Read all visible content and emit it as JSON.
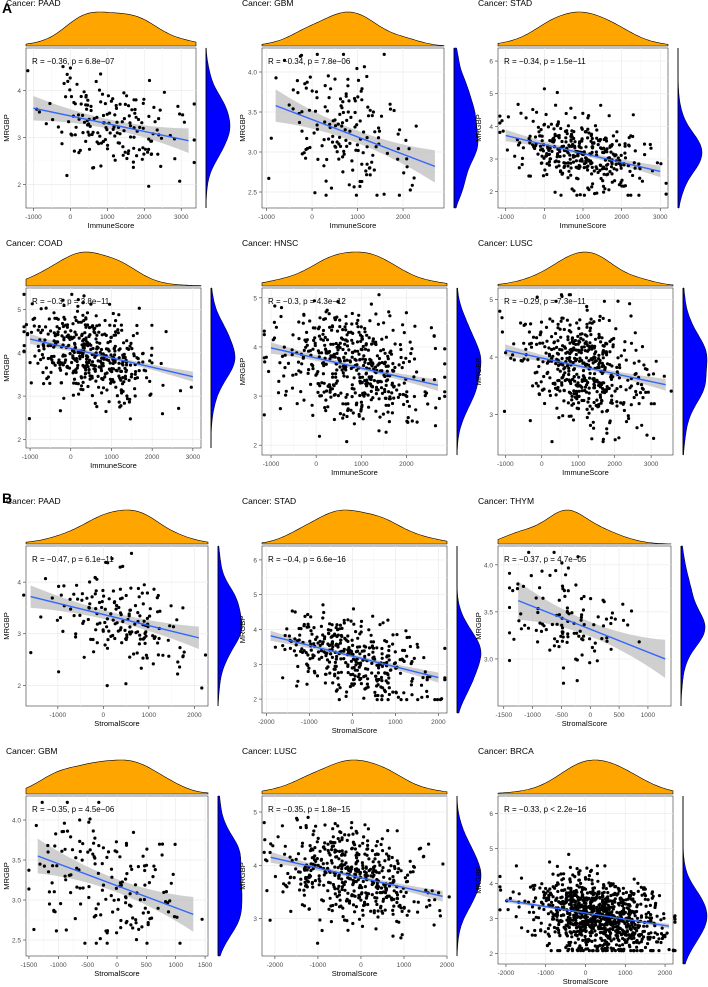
{
  "figure": {
    "panel_labels": [
      "A",
      "B"
    ],
    "colors": {
      "top_density": "#FFA500",
      "side_density": "#0000FF",
      "fit_line": "#3366FF",
      "confidence_band": "#BFBFBF",
      "points": "#000000",
      "grid": "#EBEBEB",
      "axis_border": "#333333"
    }
  },
  "chart_data": [
    {
      "panel": "A",
      "type": "scatter",
      "title": "Cancer: PAAD",
      "annotation": "R = −0.36, p = 6.8e−07",
      "xlabel": "ImmuneScore",
      "ylabel": "MRGBP",
      "xlim": [
        -1200,
        3400
      ],
      "ylim": [
        1.5,
        4.9
      ],
      "xticks": [
        -1000,
        0,
        1000,
        2000,
        3000
      ],
      "yticks": [
        2,
        3,
        4
      ],
      "n_points": 179,
      "x_center": 1100,
      "x_sd": 850,
      "y_center": 3.25,
      "y_sd": 0.45,
      "fit": {
        "x": [
          -1000,
          3200
        ],
        "y": [
          3.62,
          2.93
        ]
      },
      "band_halfwidth": 0.18,
      "seed": 11
    },
    {
      "panel": "A",
      "type": "scatter",
      "title": "Cancer: GBM",
      "annotation": "R = −0.34, p = 7.8e−06",
      "xlabel": "ImmuneScore",
      "ylabel": "MRGBP",
      "xlim": [
        -1100,
        2900
      ],
      "ylim": [
        2.3,
        4.3
      ],
      "xticks": [
        -1000,
        0,
        1000,
        2000
      ],
      "yticks": [
        2.5,
        3.0,
        3.5,
        4.0
      ],
      "n_points": 168,
      "x_center": 700,
      "x_sd": 700,
      "y_center": 3.2,
      "y_sd": 0.42,
      "fit": {
        "x": [
          -800,
          2700
        ],
        "y": [
          3.58,
          2.82
        ]
      },
      "band_halfwidth": 0.14,
      "seed": 23
    },
    {
      "panel": "A",
      "type": "scatter",
      "title": "Cancer: STAD",
      "annotation": "R = −0.34, p = 1.5e−11",
      "xlabel": "ImmuneScore",
      "ylabel": "MRGBP",
      "xlim": [
        -1200,
        3200
      ],
      "ylim": [
        1.5,
        6.4
      ],
      "xticks": [
        -1000,
        0,
        1000,
        2000,
        3000
      ],
      "yticks": [
        2,
        3,
        4,
        5,
        6
      ],
      "n_points": 375,
      "x_center": 1000,
      "x_sd": 850,
      "y_center": 3.3,
      "y_sd": 0.55,
      "fit": {
        "x": [
          -1000,
          3000
        ],
        "y": [
          3.72,
          2.62
        ]
      },
      "band_halfwidth": 0.12,
      "seed": 37
    },
    {
      "panel": "A",
      "type": "scatter",
      "title": "Cancer: COAD",
      "annotation": "R = −0.3, p = 3.8e−11",
      "xlabel": "ImmuneScore",
      "ylabel": "MRGBP",
      "xlim": [
        -1100,
        3200
      ],
      "ylim": [
        1.8,
        5.5
      ],
      "xticks": [
        -1000,
        0,
        1000,
        2000,
        3000
      ],
      "yticks": [
        2,
        3,
        4,
        5
      ],
      "n_points": 450,
      "x_center": 500,
      "x_sd": 750,
      "y_center": 4.0,
      "y_sd": 0.55,
      "fit": {
        "x": [
          -1000,
          3000
        ],
        "y": [
          4.32,
          3.45
        ]
      },
      "band_halfwidth": 0.08,
      "seed": 41
    },
    {
      "panel": "A",
      "type": "scatter",
      "title": "Cancer: HNSC",
      "annotation": "R = −0.3, p = 4.3e−12",
      "xlabel": "ImmuneScore",
      "ylabel": "MRGBP",
      "xlim": [
        -1200,
        2900
      ],
      "ylim": [
        1.8,
        5.2
      ],
      "xticks": [
        -1000,
        0,
        1000,
        2000
      ],
      "yticks": [
        2,
        3,
        4,
        5
      ],
      "n_points": 500,
      "x_center": 800,
      "x_sd": 800,
      "y_center": 3.6,
      "y_sd": 0.55,
      "fit": {
        "x": [
          -1000,
          2700
        ],
        "y": [
          3.98,
          3.22
        ]
      },
      "band_halfwidth": 0.08,
      "seed": 53
    },
    {
      "panel": "A",
      "type": "scatter",
      "title": "Cancer: LUSC",
      "annotation": "R = −0.29, p = 7.3e−11",
      "xlabel": "ImmuneScore",
      "ylabel": "MRGBP",
      "xlim": [
        -1200,
        3600
      ],
      "ylim": [
        2.3,
        5.2
      ],
      "xticks": [
        -1000,
        0,
        1000,
        2000,
        3000
      ],
      "yticks": [
        3,
        4,
        5
      ],
      "n_points": 500,
      "x_center": 1100,
      "x_sd": 850,
      "y_center": 3.8,
      "y_sd": 0.45,
      "fit": {
        "x": [
          -1000,
          3400
        ],
        "y": [
          4.12,
          3.52
        ]
      },
      "band_halfwidth": 0.07,
      "seed": 67
    },
    {
      "panel": "B",
      "type": "scatter",
      "title": "Cancer: PAAD",
      "annotation": "R = −0.47, p = 6.1e−11",
      "xlabel": "StromalScore",
      "ylabel": "MRGBP",
      "xlim": [
        -1700,
        2300
      ],
      "ylim": [
        1.6,
        4.7
      ],
      "xticks": [
        -1000,
        0,
        1000,
        2000
      ],
      "yticks": [
        2,
        3,
        4
      ],
      "n_points": 179,
      "x_center": 400,
      "x_sd": 800,
      "y_center": 3.3,
      "y_sd": 0.45,
      "fit": {
        "x": [
          -1600,
          2100
        ],
        "y": [
          3.72,
          2.92
        ]
      },
      "band_halfwidth": 0.15,
      "seed": 71
    },
    {
      "panel": "B",
      "type": "scatter",
      "title": "Cancer: STAD",
      "annotation": "R = −0.4, p = 6.6e−16",
      "xlabel": "StromalScore",
      "ylabel": "MRGBP",
      "xlim": [
        -2100,
        2200
      ],
      "ylim": [
        1.6,
        6.4
      ],
      "xticks": [
        -2000,
        -1000,
        0,
        1000,
        2000
      ],
      "yticks": [
        2,
        3,
        4,
        5,
        6
      ],
      "n_points": 375,
      "x_center": 0,
      "x_sd": 850,
      "y_center": 3.2,
      "y_sd": 0.6,
      "fit": {
        "x": [
          -1900,
          2000
        ],
        "y": [
          3.82,
          2.62
        ]
      },
      "band_halfwidth": 0.1,
      "seed": 83
    },
    {
      "panel": "B",
      "type": "scatter",
      "title": "Cancer: THYM",
      "annotation": "R = −0.37, p = 4.7e−05",
      "xlabel": "StromalScore",
      "ylabel": "MRGBP",
      "xlim": [
        -1600,
        1400
      ],
      "ylim": [
        2.5,
        4.2
      ],
      "xticks": [
        -1500,
        -1000,
        -500,
        0,
        500,
        1000
      ],
      "yticks": [
        3.0,
        3.5,
        4.0
      ],
      "n_points": 118,
      "x_center": -500,
      "x_sd": 550,
      "y_center": 3.35,
      "y_sd": 0.3,
      "fit": {
        "x": [
          -1250,
          1300
        ],
        "y": [
          3.62,
          3.0
        ]
      },
      "band_halfwidth": 0.14,
      "seed": 97
    },
    {
      "panel": "B",
      "type": "scatter",
      "title": "Cancer: GBM",
      "annotation": "R = −0.35, p = 4.5e−06",
      "xlabel": "StromalScore",
      "ylabel": "MRGBP",
      "xlim": [
        -1550,
        1550
      ],
      "ylim": [
        2.3,
        4.3
      ],
      "xticks": [
        -1500,
        -1000,
        -500,
        0,
        500,
        1000,
        1500
      ],
      "yticks": [
        2.5,
        3.0,
        3.5,
        4.0
      ],
      "n_points": 168,
      "x_center": -100,
      "x_sd": 620,
      "y_center": 3.2,
      "y_sd": 0.42,
      "fit": {
        "x": [
          -1350,
          1300
        ],
        "y": [
          3.55,
          2.82
        ]
      },
      "band_halfwidth": 0.15,
      "seed": 101
    },
    {
      "panel": "B",
      "type": "scatter",
      "title": "Cancer: LUSC",
      "annotation": "R = −0.35, p = 1.8e−15",
      "xlabel": "StromalScore",
      "ylabel": "MRGBP",
      "xlim": [
        -2300,
        2000
      ],
      "ylim": [
        2.3,
        5.3
      ],
      "xticks": [
        -2000,
        -1000,
        0,
        1000,
        2000
      ],
      "yticks": [
        3,
        4,
        5
      ],
      "n_points": 500,
      "x_center": -200,
      "x_sd": 850,
      "y_center": 3.8,
      "y_sd": 0.45,
      "fit": {
        "x": [
          -2100,
          1900
        ],
        "y": [
          4.15,
          3.42
        ]
      },
      "band_halfwidth": 0.07,
      "seed": 113
    },
    {
      "panel": "B",
      "type": "scatter",
      "title": "Cancer: BRCA",
      "annotation": "R = −0.33, p < 2.2e−16",
      "xlabel": "StromalScore",
      "ylabel": "MRGBP",
      "xlim": [
        -2200,
        2200
      ],
      "ylim": [
        1.7,
        6.5
      ],
      "xticks": [
        -2000,
        -1000,
        0,
        1000,
        2000
      ],
      "yticks": [
        2,
        3,
        4,
        5,
        6
      ],
      "n_points": 1000,
      "x_center": 300,
      "x_sd": 800,
      "y_center": 3.2,
      "y_sd": 0.55,
      "fit": {
        "x": [
          -2000,
          2100
        ],
        "y": [
          3.52,
          2.78
        ]
      },
      "band_halfwidth": 0.05,
      "seed": 127
    }
  ]
}
